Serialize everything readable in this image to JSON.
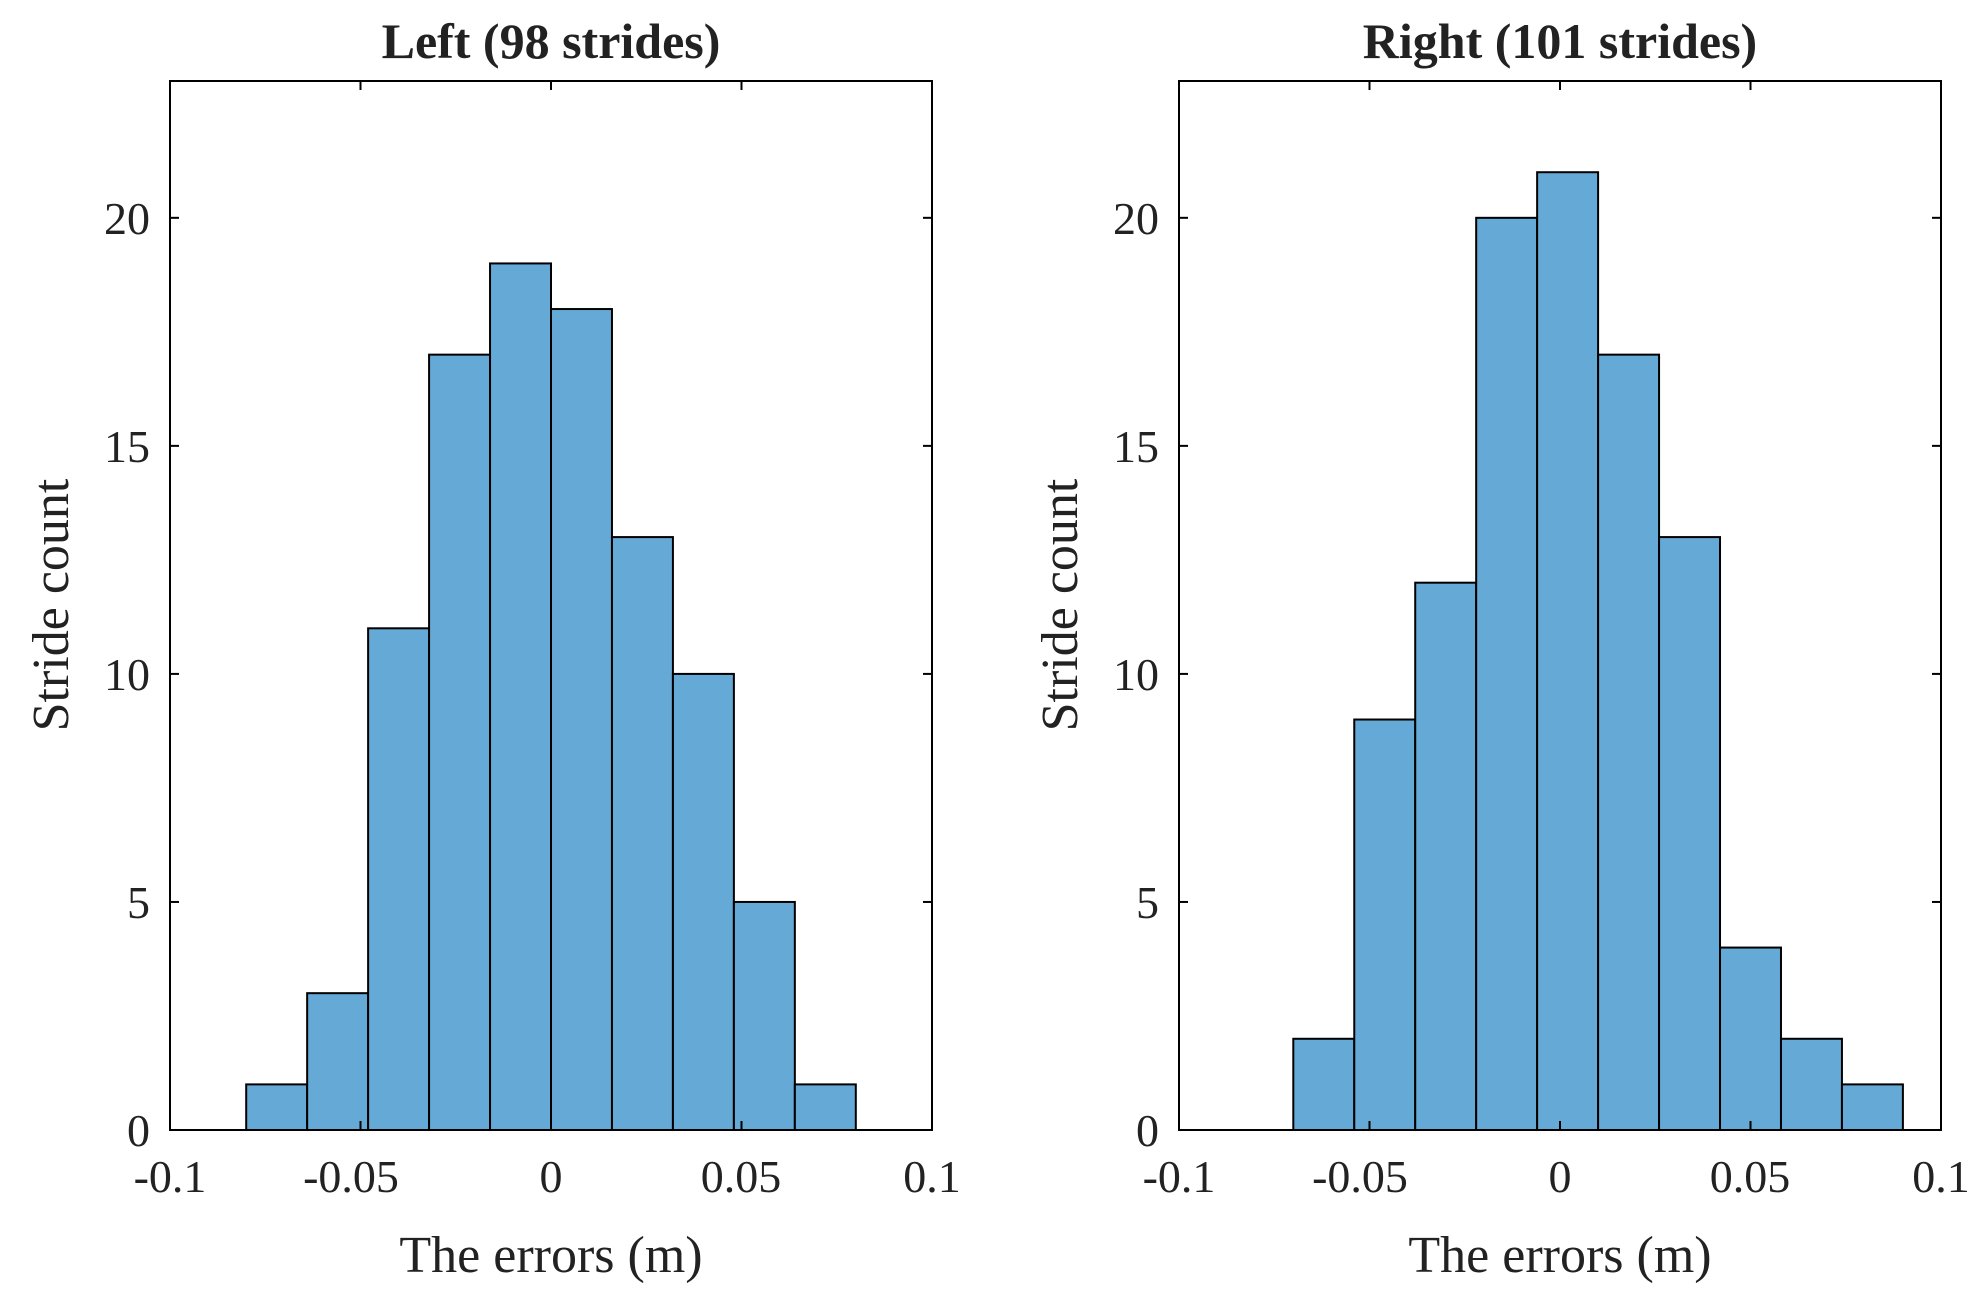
{
  "chart_data": [
    {
      "type": "bar",
      "title": "Left (98 strides)",
      "xlabel": "The errors (m)",
      "ylabel": "Stride count",
      "xlim": [
        -0.1,
        0.1
      ],
      "ylim": [
        0,
        23
      ],
      "xticks": [
        "-0.1",
        "-0.05",
        "0",
        "0.05",
        "0.1"
      ],
      "yticks": [
        "0",
        "5",
        "10",
        "15",
        "20"
      ],
      "bin_edges": [
        -0.08,
        -0.064,
        -0.048,
        -0.032,
        -0.016,
        0.0,
        0.016,
        0.032,
        0.048,
        0.064,
        0.08
      ],
      "values": [
        1,
        3,
        11,
        17,
        19,
        18,
        13,
        10,
        5,
        1
      ],
      "bar_color": "#65A9D7"
    },
    {
      "type": "bar",
      "title": "Right (101 strides)",
      "xlabel": "The errors (m)",
      "ylabel": "Stride count",
      "xlim": [
        -0.1,
        0.1
      ],
      "ylim": [
        0,
        23
      ],
      "xticks": [
        "-0.1",
        "-0.05",
        "0",
        "0.05",
        "0.1"
      ],
      "yticks": [
        "0",
        "5",
        "10",
        "15",
        "20"
      ],
      "bin_edges": [
        -0.07,
        -0.054,
        -0.038,
        -0.022,
        -0.006,
        0.01,
        0.026,
        0.042,
        0.058,
        0.074,
        0.09
      ],
      "values": [
        2,
        9,
        12,
        20,
        21,
        17,
        13,
        4,
        2,
        1
      ],
      "bar_color": "#65A9D7"
    }
  ]
}
